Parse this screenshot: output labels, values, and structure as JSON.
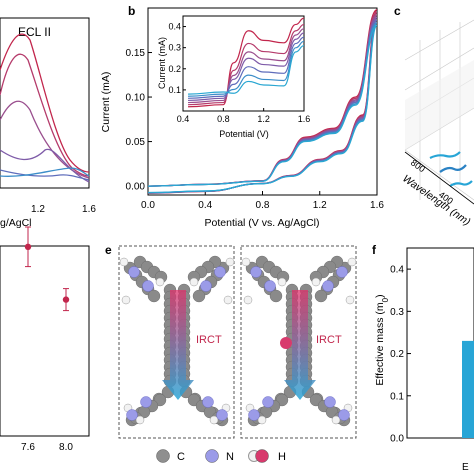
{
  "panels": {
    "a": {
      "inner_label": "ECL II",
      "x_ticks": [
        "1.2",
        "1.6"
      ],
      "x_label_partial": "g/AgCl"
    },
    "b": {
      "letter": "b"
    },
    "c": {
      "letter": "c",
      "axis_label": "Wavelength (nm)",
      "ticks": [
        "800",
        "400"
      ]
    },
    "d": {
      "x_ticks": [
        "7.6",
        "8.0"
      ]
    },
    "e": {
      "letter": "e",
      "labels": [
        "IRCT",
        "IRCT"
      ]
    },
    "f": {
      "letter": "f",
      "ylabel": "Effective mass (m",
      "ylabel_sub": "0",
      "ylabel_end": ")",
      "bar_label": "E",
      "y_ticks": [
        "0.4",
        "0.3",
        "0.2",
        "0.1",
        "0.0"
      ]
    }
  },
  "legend_e": [
    {
      "symbol": "C",
      "color": "#8f8f8f"
    },
    {
      "symbol": "N",
      "color": "#9b9be8"
    },
    {
      "symbol": "H",
      "color": "#d83a6d"
    }
  ],
  "colors": {
    "cv_series": [
      "#c2264c",
      "#b53b6b",
      "#9a4f8e",
      "#7e5ba8",
      "#5f6dbb",
      "#3c8ec9",
      "#2aa7d2"
    ],
    "bar": "#27a5d6",
    "pink": "#d83a6d"
  },
  "chart_data": [
    {
      "type": "line",
      "panel": "b",
      "xlabel": "Potential (V vs. Ag/AgCl)",
      "ylabel": "Current (mA)",
      "xlim": [
        0.0,
        1.6
      ],
      "ylim": [
        -0.01,
        0.2
      ],
      "x_ticks": [
        "0.0",
        "0.4",
        "0.8",
        "1.2",
        "1.6"
      ],
      "y_ticks": [
        "0.00",
        "0.05",
        "0.10",
        "0.15"
      ],
      "forward": [
        [
          0.0,
          0.0
        ],
        [
          0.4,
          0.002
        ],
        [
          0.8,
          0.006
        ],
        [
          0.95,
          0.03
        ],
        [
          1.1,
          0.055
        ],
        [
          1.3,
          0.065
        ],
        [
          1.45,
          0.1
        ],
        [
          1.6,
          0.198
        ]
      ],
      "reverse": [
        [
          1.6,
          0.198
        ],
        [
          1.5,
          0.08
        ],
        [
          1.35,
          0.04
        ],
        [
          1.2,
          0.03
        ],
        [
          1.0,
          0.012
        ],
        [
          0.8,
          0.003
        ],
        [
          0.4,
          -0.006
        ],
        [
          0.0,
          -0.008
        ]
      ]
    },
    {
      "type": "line",
      "panel": "b-inset",
      "xlabel": "Potential (V)",
      "ylabel": "Current (mA)",
      "xlim": [
        0.4,
        1.6
      ],
      "ylim": [
        0.0,
        0.45
      ],
      "x_ticks": [
        "0.4",
        "0.8",
        "1.2",
        "1.6"
      ],
      "y_ticks": [
        "0.1",
        "0.2",
        "0.3",
        "0.4"
      ],
      "series": [
        {
          "peak": 0.38,
          "end": 0.41
        },
        {
          "peak": 0.32,
          "end": 0.38
        },
        {
          "peak": 0.28,
          "end": 0.36
        },
        {
          "peak": 0.25,
          "end": 0.34
        },
        {
          "peak": 0.21,
          "end": 0.32
        },
        {
          "peak": 0.17,
          "end": 0.3
        },
        {
          "peak": 0.14,
          "end": 0.28
        }
      ]
    },
    {
      "type": "bar",
      "panel": "f",
      "ylim": [
        0.0,
        0.45
      ],
      "values": [
        0.23
      ]
    },
    {
      "type": "scatter",
      "panel": "d",
      "x": [
        7.6,
        8.0
      ],
      "y": [
        0.86,
        0.62
      ],
      "err": [
        0.09,
        0.05
      ]
    }
  ]
}
